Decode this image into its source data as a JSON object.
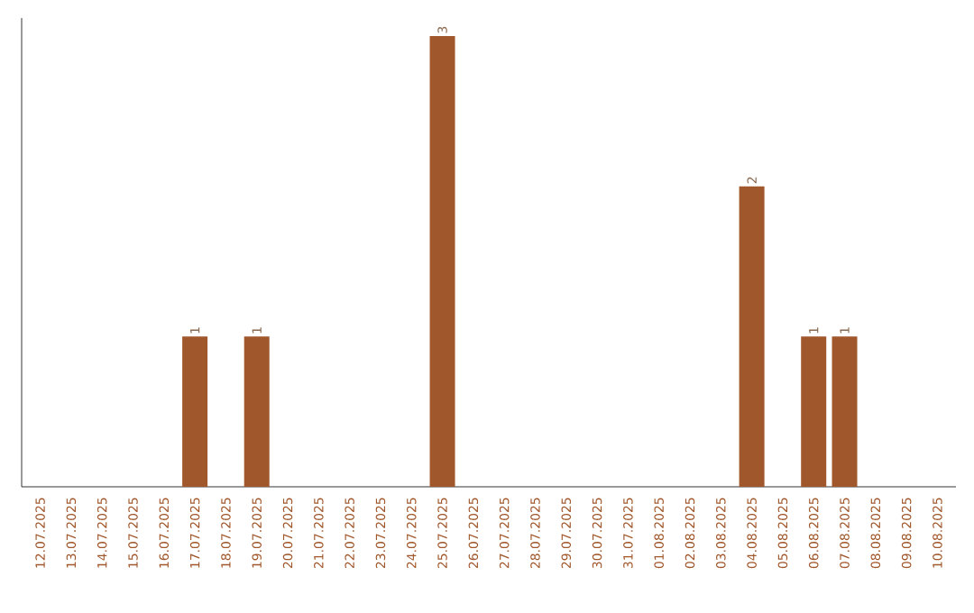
{
  "chart_data": {
    "type": "bar",
    "categories": [
      "12.07.2025",
      "13.07.2025",
      "14.07.2025",
      "15.07.2025",
      "16.07.2025",
      "17.07.2025",
      "18.07.2025",
      "19.07.2025",
      "20.07.2025",
      "21.07.2025",
      "22.07.2025",
      "23.07.2025",
      "24.07.2025",
      "25.07.2025",
      "26.07.2025",
      "27.07.2025",
      "28.07.2025",
      "29.07.2025",
      "30.07.2025",
      "31.07.2025",
      "01.08.2025",
      "02.08.2025",
      "03.08.2025",
      "04.08.2025",
      "05.08.2025",
      "06.08.2025",
      "07.08.2025",
      "08.08.2025",
      "09.08.2025",
      "10.08.2025"
    ],
    "values": [
      0,
      0,
      0,
      0,
      0,
      1,
      0,
      1,
      0,
      0,
      0,
      0,
      0,
      3,
      0,
      0,
      0,
      0,
      0,
      0,
      0,
      0,
      0,
      2,
      0,
      1,
      1,
      0,
      0,
      0
    ],
    "value_labels": [
      null,
      null,
      null,
      null,
      null,
      "1",
      null,
      "1",
      null,
      null,
      null,
      null,
      null,
      "3",
      null,
      null,
      null,
      null,
      null,
      null,
      null,
      null,
      null,
      "2",
      null,
      "1",
      "1",
      null,
      null,
      null
    ],
    "color": "#a0572b"
  }
}
